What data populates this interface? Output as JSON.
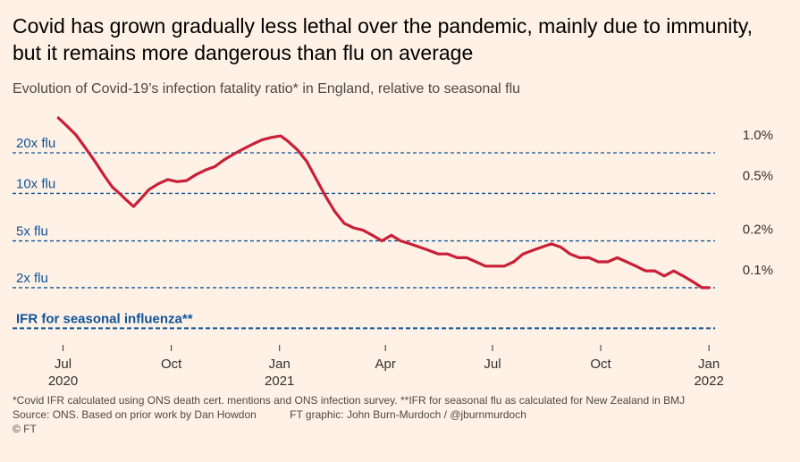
{
  "title": "Covid has grown gradually less lethal over the pandemic, mainly due to immunity, but it remains more dangerous than flu on average",
  "subtitle": "Evolution of Covid-19’s infection fatality ratio* in England, relative to seasonal flu",
  "footnote": "*Covid IFR calculated using ONS death cert. mentions and ONS infection survey. **IFR for seasonal flu as calculated for New Zealand in BMJ",
  "source": "Source: ONS. Based on prior work by Dan Howdon",
  "credit": "FT graphic: John Burn-Murdoch / @jburnmurdoch",
  "copyright": "© FT",
  "colors": {
    "line": "#c91f37",
    "reference": "#0f5499",
    "axis": "#33302e",
    "background": "#fff1e5"
  },
  "chart_data": {
    "type": "line",
    "yscale": "log",
    "ylim": [
      0.036,
      1.9
    ],
    "xlim": [
      "2020-06-23",
      "2022-01-10"
    ],
    "y_tick_labels": [
      {
        "value": 1.0,
        "label": "1.0%"
      },
      {
        "value": 0.5,
        "label": "0.5%"
      },
      {
        "value": 0.2,
        "label": "0.2%"
      },
      {
        "value": 0.1,
        "label": "0.1%"
      }
    ],
    "reference_lines": [
      {
        "value": 0.9,
        "label": "20x flu"
      },
      {
        "value": 0.45,
        "label": "10x flu"
      },
      {
        "value": 0.2,
        "label": "5x flu"
      },
      {
        "value": 0.09,
        "label": "2x flu"
      },
      {
        "value": 0.045,
        "label": "IFR for seasonal influenza**"
      }
    ],
    "x_ticks": [
      {
        "date": "2020-07-01",
        "label": "Jul",
        "sublabel": "2020"
      },
      {
        "date": "2020-10-01",
        "label": "Oct",
        "sublabel": ""
      },
      {
        "date": "2021-01-01",
        "label": "Jan",
        "sublabel": "2021"
      },
      {
        "date": "2021-04-01",
        "label": "Apr",
        "sublabel": ""
      },
      {
        "date": "2021-07-01",
        "label": "Jul",
        "sublabel": ""
      },
      {
        "date": "2021-10-01",
        "label": "Oct",
        "sublabel": ""
      },
      {
        "date": "2022-01-01",
        "label": "Jan",
        "sublabel": "2022"
      }
    ],
    "series": [
      {
        "x": [
          "2020-06-27",
          "2020-07-04",
          "2020-07-12",
          "2020-07-20",
          "2020-07-28",
          "2020-08-05",
          "2020-08-12",
          "2020-08-18",
          "2020-08-24",
          "2020-08-30",
          "2020-09-05",
          "2020-09-12",
          "2020-09-20",
          "2020-09-28",
          "2020-10-06",
          "2020-10-14",
          "2020-10-22",
          "2020-10-30",
          "2020-11-07",
          "2020-11-15",
          "2020-11-23",
          "2020-12-01",
          "2020-12-09",
          "2020-12-17",
          "2020-12-25",
          "2021-01-02",
          "2021-01-08",
          "2021-01-16",
          "2021-01-24",
          "2021-02-01",
          "2021-02-09",
          "2021-02-17",
          "2021-02-25",
          "2021-03-05",
          "2021-03-13",
          "2021-03-21",
          "2021-03-29",
          "2021-04-06",
          "2021-04-14",
          "2021-04-22",
          "2021-04-30",
          "2021-05-08",
          "2021-05-16",
          "2021-05-24",
          "2021-06-01",
          "2021-06-09",
          "2021-06-17",
          "2021-06-25",
          "2021-07-03",
          "2021-07-11",
          "2021-07-19",
          "2021-07-27",
          "2021-08-04",
          "2021-08-12",
          "2021-08-20",
          "2021-08-28",
          "2021-09-05",
          "2021-09-13",
          "2021-09-21",
          "2021-09-29",
          "2021-10-07",
          "2021-10-15",
          "2021-10-23",
          "2021-10-31",
          "2021-11-08",
          "2021-11-16",
          "2021-11-24",
          "2021-12-02",
          "2021-12-10",
          "2021-12-18",
          "2021-12-26",
          "2022-01-01"
        ],
        "values": [
          1.63,
          1.43,
          1.22,
          0.98,
          0.78,
          0.61,
          0.5,
          0.45,
          0.4,
          0.36,
          0.41,
          0.48,
          0.53,
          0.57,
          0.55,
          0.56,
          0.62,
          0.67,
          0.71,
          0.8,
          0.88,
          0.96,
          1.04,
          1.12,
          1.17,
          1.2,
          1.1,
          0.95,
          0.78,
          0.58,
          0.43,
          0.33,
          0.27,
          0.25,
          0.24,
          0.22,
          0.2,
          0.22,
          0.2,
          0.19,
          0.18,
          0.17,
          0.16,
          0.16,
          0.15,
          0.15,
          0.14,
          0.13,
          0.13,
          0.13,
          0.14,
          0.16,
          0.17,
          0.18,
          0.19,
          0.18,
          0.16,
          0.15,
          0.15,
          0.14,
          0.14,
          0.15,
          0.14,
          0.13,
          0.12,
          0.12,
          0.11,
          0.12,
          0.11,
          0.1,
          0.09,
          0.09
        ]
      }
    ]
  }
}
